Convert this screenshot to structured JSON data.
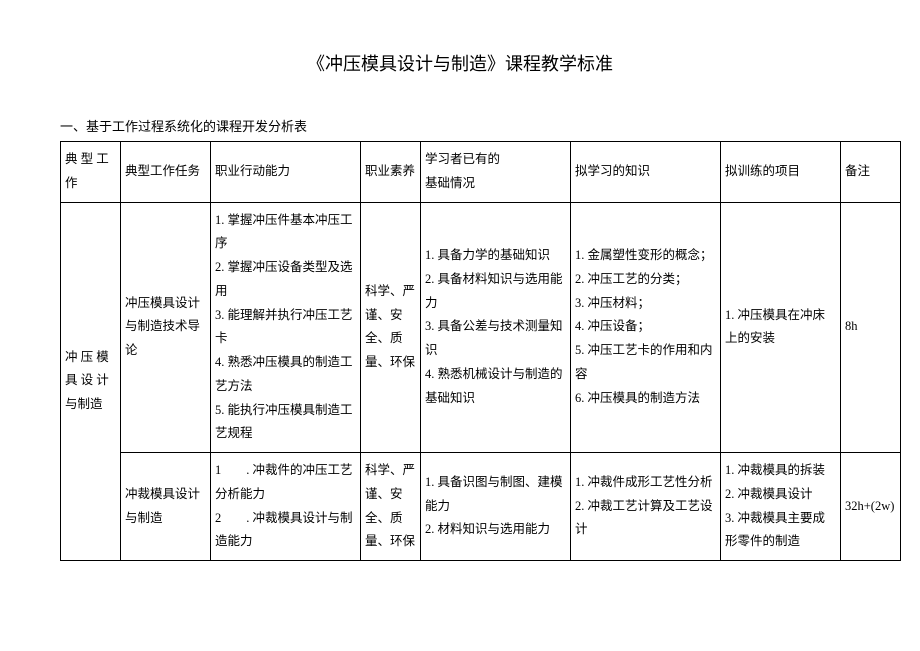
{
  "title": "《冲压模具设计与制造》课程教学标准",
  "subtitle": "一、基于工作过程系统化的课程开发分析表",
  "header": {
    "c0": "典 型 工作",
    "c1": "典型工作任务",
    "c2": "职业行动能力",
    "c3": "职业素养",
    "c4": "学习者已有的\n基础情况",
    "c5": "拟学习的知识",
    "c6": "拟训练的项目",
    "c7": "备注"
  },
  "rows": {
    "merge_col0": "冲 压 模具 设 计与制造",
    "r1": {
      "c1": "冲压模具设计与制造技术导论",
      "c2": "1. 掌握冲压件基本冲压工序\n2. 掌握冲压设备类型及选用\n3. 能理解并执行冲压工艺卡\n4. 熟悉冲压模具的制造工艺方法\n5. 能执行冲压模具制造工艺规程",
      "c3": "科学、严谨、安全、质量、环保",
      "c4": "1. 具备力学的基础知识\n2. 具备材料知识与选用能力\n3. 具备公差与技术测量知识\n4. 熟悉机械设计与制造的基础知识",
      "c5": "1. 金属塑性变形的概念；\n2. 冲压工艺的分类；\n3. 冲压材料；\n4. 冲压设备；\n5. 冲压工艺卡的作用和内容\n6. 冲压模具的制造方法",
      "c6": "1. 冲压模具在冲床上的安装",
      "c7": "8h"
    },
    "r2": {
      "c1": "冲裁模具设计与制造",
      "c2": "1　　. 冲裁件的冲压工艺分析能力\n2　　. 冲裁模具设计与制造能力",
      "c3": "科学、严谨、安全、质量、环保",
      "c4": "1. 具备识图与制图、建模能力\n2. 材料知识与选用能力",
      "c5": "1. 冲裁件成形工艺性分析\n2. 冲裁工艺计算及工艺设计",
      "c6": "1. 冲裁模具的拆装\n2. 冲裁模具设计\n3. 冲裁模具主要成形零件的制造",
      "c7": "32h+(2w)"
    }
  }
}
